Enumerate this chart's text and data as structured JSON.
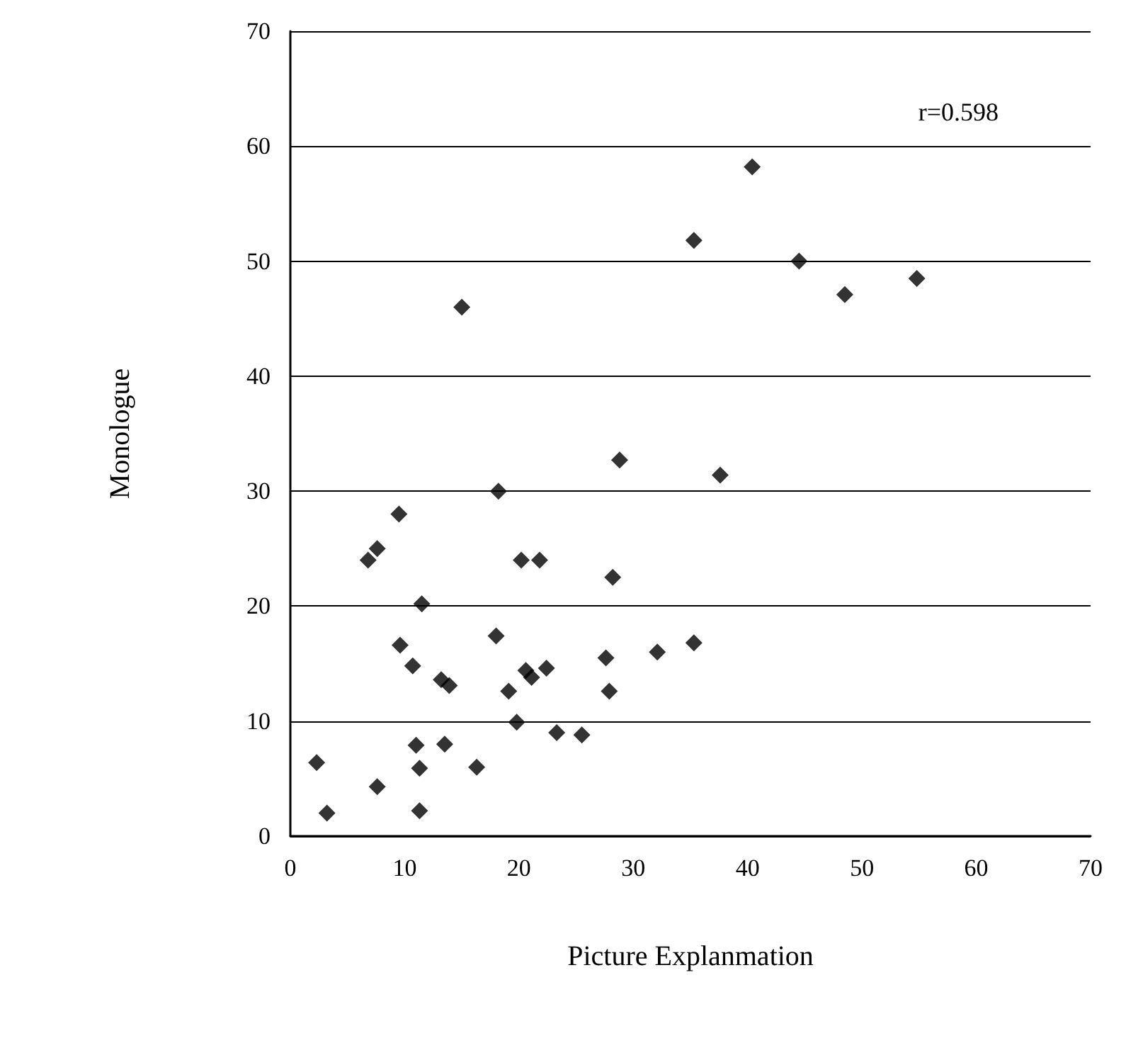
{
  "chart_data": {
    "type": "scatter",
    "xlabel": "Picture Explanmation",
    "ylabel": "Monologue",
    "annotations": [
      "r=0.598"
    ],
    "x": [
      2.3,
      3.2,
      7.6,
      6.8,
      7.6,
      9.5,
      9.6,
      10.7,
      11.5,
      11.0,
      11.3,
      11.3,
      13.2,
      13.9,
      13.5,
      15.0,
      16.3,
      18.0,
      18.2,
      19.1,
      19.8,
      20.2,
      20.6,
      21.1,
      21.8,
      22.4,
      23.3,
      25.5,
      27.6,
      27.9,
      28.2,
      28.8,
      32.1,
      35.3,
      35.3,
      37.6,
      40.4,
      44.5,
      48.5,
      54.8
    ],
    "series": [
      {
        "color": "#000000",
        "values": [
          6.4,
          2.0,
          4.3,
          24.0,
          25.0,
          28.0,
          16.6,
          14.8,
          20.2,
          7.9,
          5.9,
          2.2,
          13.6,
          13.1,
          8.0,
          46.0,
          6.0,
          17.4,
          30.0,
          12.6,
          9.9,
          24.0,
          14.4,
          13.8,
          24.0,
          14.6,
          9.0,
          8.8,
          15.5,
          12.6,
          22.5,
          32.7,
          16.0,
          16.8,
          51.8,
          31.4,
          58.2,
          50.0,
          47.1,
          48.5
        ]
      }
    ],
    "xlim": [
      0,
      70
    ],
    "xticks": [
      0,
      10,
      20,
      30,
      40,
      50,
      60,
      70
    ],
    "ylim": [
      0,
      70
    ],
    "yticks": [
      0,
      10,
      20,
      30,
      40,
      50,
      60,
      70
    ],
    "grid": "y",
    "marker": "diamond"
  }
}
